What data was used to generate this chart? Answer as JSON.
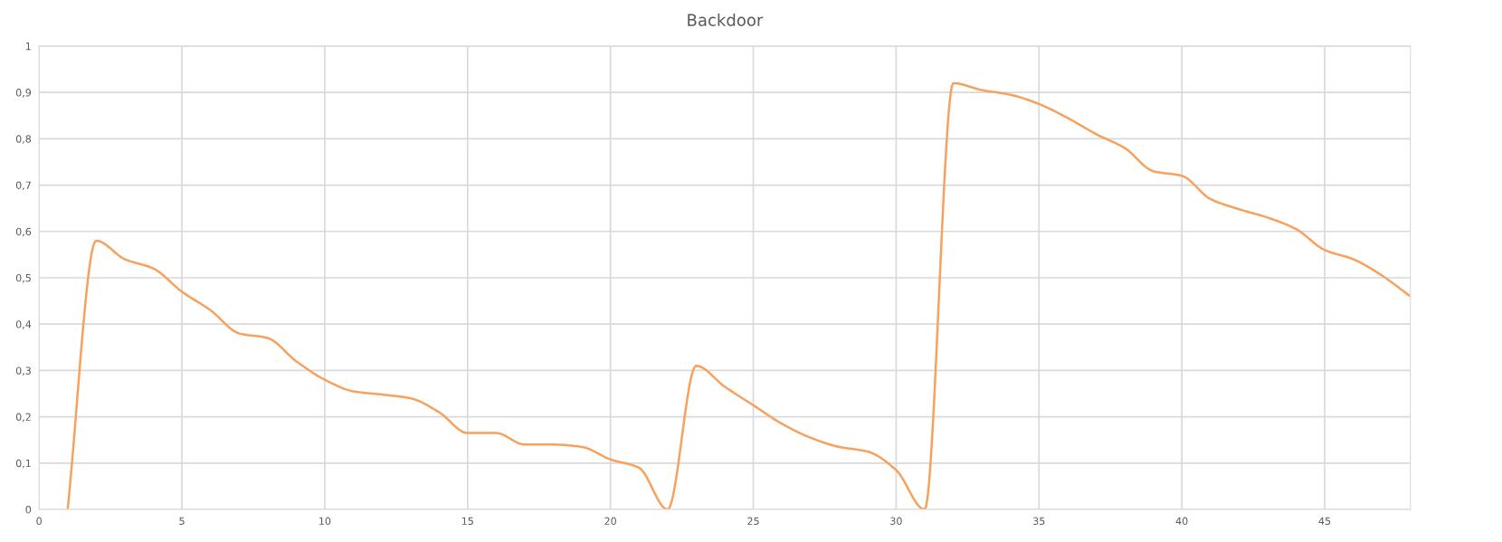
{
  "chart_data": {
    "type": "line",
    "title": "Backdoor",
    "x": [
      1,
      2,
      3,
      4,
      5,
      6,
      7,
      8,
      9,
      10,
      11,
      12,
      13,
      14,
      15,
      16,
      17,
      18,
      19,
      20,
      21,
      22,
      23,
      24,
      25,
      26,
      27,
      28,
      29,
      30,
      31,
      32,
      33,
      34,
      35,
      36,
      37,
      38,
      39,
      40,
      41,
      42,
      43,
      44,
      45,
      46,
      47,
      48
    ],
    "series": [
      {
        "color": "#f7a15e",
        "values": [
          0,
          0.58,
          0.54,
          0.52,
          0.47,
          0.43,
          0.38,
          0.37,
          0.32,
          0.28,
          0.255,
          0.248,
          0.24,
          0.21,
          0.165,
          0.165,
          0.14,
          0.14,
          0.135,
          0.108,
          0.09,
          0,
          0.31,
          0.265,
          0.225,
          0.185,
          0.155,
          0.135,
          0.125,
          0.085,
          0,
          0.92,
          0.905,
          0.895,
          0.875,
          0.845,
          0.81,
          0.78,
          0.73,
          0.72,
          0.67,
          0.648,
          0.63,
          0.605,
          0.56,
          0.54,
          0.505,
          0.46
        ]
      }
    ],
    "xlim": [
      0,
      48
    ],
    "xticks": [
      0,
      5,
      10,
      15,
      20,
      25,
      30,
      35,
      40,
      45
    ],
    "ylim": [
      0,
      1
    ],
    "yticks": [
      0,
      {
        "value": 0.1,
        "label": "0,1"
      },
      {
        "value": 0.2,
        "label": "0,2"
      },
      {
        "value": 0.3,
        "label": "0,3"
      },
      {
        "value": 0.4,
        "label": "0,4"
      },
      {
        "value": 0.5,
        "label": "0,5"
      },
      {
        "value": 0.6,
        "label": "0,6"
      },
      {
        "value": 0.7,
        "label": "0,7"
      },
      {
        "value": 0.8,
        "label": "0,8"
      },
      {
        "value": 0.9,
        "label": "0,9"
      },
      1
    ],
    "grid": true,
    "line_style": "solid"
  }
}
